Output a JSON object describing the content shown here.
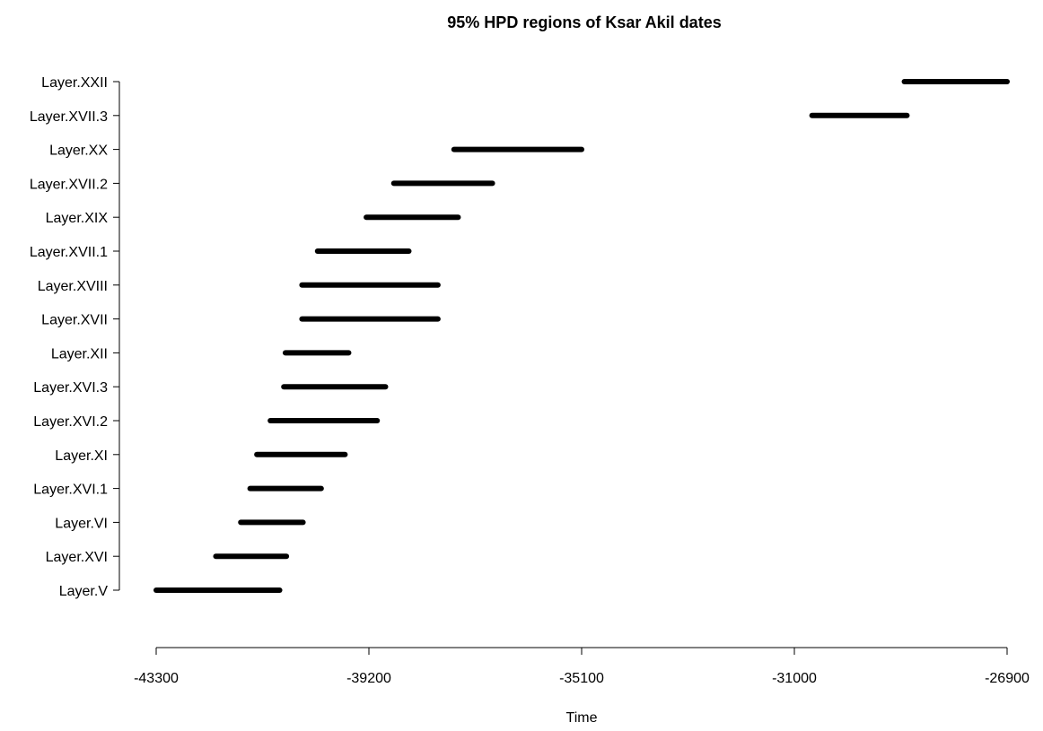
{
  "chart_data": {
    "type": "range",
    "title": "95% HPD regions of Ksar Akil dates",
    "xlabel": "Time",
    "ylabel": "",
    "xlim": [
      -43300,
      -26900
    ],
    "xticks": [
      -43300,
      -39200,
      -35100,
      -31000,
      -26900
    ],
    "xtick_labels": [
      "-43300",
      "-39200",
      "-35100",
      "-31000",
      "-26900"
    ],
    "categories": [
      "Layer.XXII",
      "Layer.XVII.3",
      "Layer.XX",
      "Layer.XVII.2",
      "Layer.XIX",
      "Layer.XVII.1",
      "Layer.XVIII",
      "Layer.XVII",
      "Layer.XII",
      "Layer.XVI.3",
      "Layer.XVI.2",
      "Layer.XI",
      "Layer.XVI.1",
      "Layer.VI",
      "Layer.XVI",
      "Layer.V"
    ],
    "ranges": [
      [
        -28880,
        -26900
      ],
      [
        -30660,
        -28830
      ],
      [
        -37560,
        -35100
      ],
      [
        -38720,
        -36820
      ],
      [
        -39250,
        -37480
      ],
      [
        -40190,
        -38430
      ],
      [
        -40490,
        -37870
      ],
      [
        -40490,
        -37870
      ],
      [
        -40810,
        -39590
      ],
      [
        -40840,
        -38880
      ],
      [
        -41100,
        -39040
      ],
      [
        -41360,
        -39660
      ],
      [
        -41490,
        -40120
      ],
      [
        -41670,
        -40470
      ],
      [
        -42150,
        -40790
      ],
      [
        -43300,
        -40920
      ]
    ],
    "grid": false,
    "color": "#000000"
  }
}
